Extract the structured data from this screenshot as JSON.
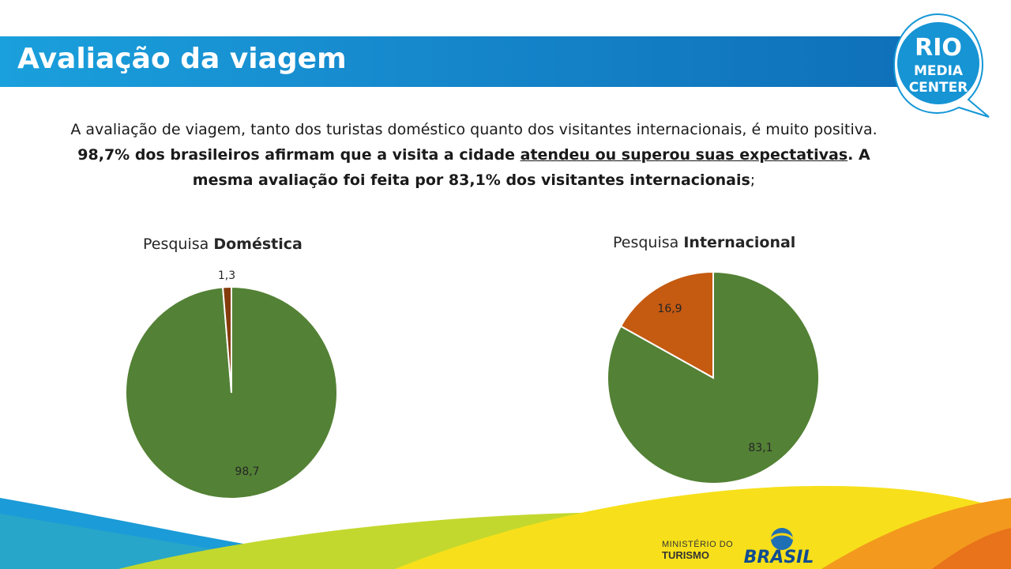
{
  "header": {
    "title": "Avaliação da viagem"
  },
  "logo": {
    "line1": "RIO",
    "line2": "MEDIA",
    "line3": "CENTER"
  },
  "intro": {
    "part1": "A avaliação de viagem, tanto dos turistas doméstico quanto dos visitantes internacionais, é muito positiva. ",
    "bold1": "98,7% dos brasileiros afirmam que a visita a cidade ",
    "underlined": "atendeu ou superou suas expectativas",
    "bold2": ". A mesma avaliação foi feita por 83,1% dos visitantes internacionais",
    "end": ";"
  },
  "chart_data": [
    {
      "type": "pie",
      "title_prefix": "Pesquisa ",
      "title_bold": "Doméstica",
      "slices": [
        {
          "value": 98.7,
          "label": "98,7",
          "color": "#538135"
        },
        {
          "value": 1.3,
          "label": "1,3",
          "color": "#843c0c"
        }
      ]
    },
    {
      "type": "pie",
      "title_prefix": "Pesquisa ",
      "title_bold": "Internacional",
      "slices": [
        {
          "value": 83.1,
          "label": "83,1",
          "color": "#538135"
        },
        {
          "value": 16.9,
          "label": "16,9",
          "color": "#c55a11"
        }
      ]
    }
  ],
  "footer": {
    "ministry_line1": "MINISTÉRIO DO",
    "ministry_line2": "TURISMO",
    "brand": "BRASIL"
  }
}
